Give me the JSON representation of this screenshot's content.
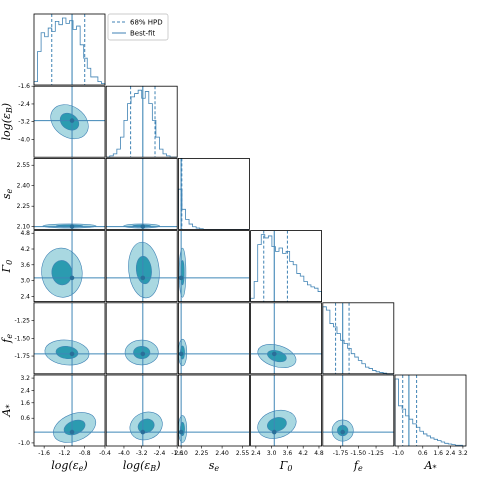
{
  "chart_data": {
    "type": "corner",
    "legend": {
      "placement": "top",
      "entries": [
        {
          "label": "68% HPD",
          "style": "dashed"
        },
        {
          "label": "Best-fit",
          "style": "solid"
        }
      ]
    },
    "colors": {
      "line": "#3f82b4",
      "fill_inner": "#2b9bb0",
      "fill_outer": "#a9d8e1",
      "best_fit": "#3f86b6"
    },
    "parameters": [
      {
        "name": "log_epsilon_e",
        "label": "log(εe)",
        "range": [
          -1.8,
          -0.4
        ],
        "ticks": [
          -1.6,
          -1.2,
          -0.8,
          -0.4
        ],
        "tick_labels": [
          "-1.6",
          "-1.2",
          "-0.8",
          "-0.4"
        ],
        "best_fit": -1.05,
        "hpd": [
          -1.45,
          -0.8
        ],
        "hist": [
          0.05,
          0.5,
          0.78,
          0.72,
          0.85,
          0.8,
          0.95,
          0.9,
          1.0,
          0.92,
          0.96,
          0.83,
          0.88,
          0.6,
          0.4,
          0.25,
          0.12,
          0.12,
          0.05,
          0.02
        ]
      },
      {
        "name": "log_epsilon_B",
        "label": "log(εB)",
        "range": [
          -4.8,
          -1.6
        ],
        "ticks": [
          -4.0,
          -3.2,
          -2.4,
          -1.6
        ],
        "tick_labels": [
          "-4.0",
          "-3.2",
          "-2.4",
          "-1.6"
        ],
        "best_fit": -3.15,
        "hpd": [
          -3.7,
          -2.6
        ],
        "hist": [
          0.0,
          0.02,
          0.05,
          0.12,
          0.3,
          0.55,
          0.8,
          0.9,
          0.95,
          1.0,
          0.88,
          0.98,
          0.8,
          0.55,
          0.3,
          0.12,
          0.05,
          0.02,
          0.0,
          0.0
        ]
      },
      {
        "name": "s_e",
        "label": "se",
        "range": [
          2.08,
          2.6
        ],
        "ticks": [
          2.1,
          2.25,
          2.4,
          2.55
        ],
        "tick_labels": [
          "2.10",
          "2.25",
          "2.40",
          "2.55"
        ],
        "best_fit": 2.1,
        "hpd": [
          2.1,
          2.105
        ],
        "hist": [
          0.6,
          0.3,
          0.15,
          0.08,
          0.04,
          0.02,
          0.01,
          0.0,
          0.0,
          0.0,
          0.0,
          0.0,
          0.0,
          0.0,
          0.0,
          0.0,
          0.0,
          0.0,
          0.0,
          0.0
        ]
      },
      {
        "name": "Gamma_0",
        "label": "Γ0",
        "range": [
          2.2,
          4.9
        ],
        "ticks": [
          2.4,
          3.0,
          3.6,
          4.2,
          4.8
        ],
        "tick_labels": [
          "2.4",
          "3.0",
          "3.6",
          "4.2",
          "4.8"
        ],
        "best_fit": 3.1,
        "hpd": [
          2.7,
          3.6
        ],
        "hist": [
          0.05,
          0.3,
          0.85,
          1.0,
          0.95,
          0.98,
          0.82,
          0.75,
          0.8,
          0.72,
          0.75,
          0.6,
          0.55,
          0.42,
          0.38,
          0.3,
          0.25,
          0.22,
          0.2,
          0.15
        ]
      },
      {
        "name": "f_e",
        "label": "fe",
        "range": [
          -2.0,
          -1.0
        ],
        "ticks": [
          -1.75,
          -1.5,
          -1.25
        ],
        "tick_labels": [
          "-1.75",
          "-1.50",
          "-1.25"
        ],
        "best_fit": -1.72,
        "hpd": [
          -1.82,
          -1.63
        ],
        "hist": [
          1.0,
          0.95,
          0.75,
          0.7,
          0.6,
          0.5,
          0.45,
          0.38,
          0.3,
          0.25,
          0.2,
          0.15,
          0.1,
          0.08,
          0.05,
          0.03,
          0.02,
          0.01,
          0.0,
          0.0
        ]
      },
      {
        "name": "A_star",
        "label": "A*",
        "range": [
          -1.2,
          3.4
        ],
        "ticks": [
          -1.0,
          0.6,
          1.6,
          2.4,
          3.2
        ],
        "tick_labels": [
          "-1.0",
          "0.6",
          "1.6",
          "2.4",
          "3.2"
        ],
        "best_fit": -0.3,
        "hpd": [
          -0.7,
          0.2
        ],
        "hist": [
          1.0,
          0.6,
          0.55,
          0.45,
          0.4,
          0.33,
          0.28,
          0.22,
          0.18,
          0.15,
          0.12,
          0.1,
          0.08,
          0.06,
          0.04,
          0.03,
          0.02,
          0.01,
          0.01,
          0.0
        ]
      }
    ],
    "contours": [
      {
        "x": 0,
        "y": 1,
        "center": [
          -1.1,
          -3.2
        ],
        "spread": [
          0.32,
          0.55
        ],
        "tilt": -0.7
      },
      {
        "x": 0,
        "y": 2,
        "center": [
          -1.1,
          2.105
        ],
        "spread": [
          0.42,
          0.012
        ],
        "tilt": 0.0
      },
      {
        "x": 1,
        "y": 2,
        "center": [
          -3.2,
          2.105
        ],
        "spread": [
          0.65,
          0.012
        ],
        "tilt": 0.0
      },
      {
        "x": 0,
        "y": 3,
        "center": [
          -1.25,
          3.3
        ],
        "spread": [
          0.32,
          0.75
        ],
        "tilt": 0.1
      },
      {
        "x": 1,
        "y": 3,
        "center": [
          -3.1,
          3.4
        ],
        "spread": [
          0.55,
          0.85
        ],
        "tilt": 0.1
      },
      {
        "x": 2,
        "y": 3,
        "center": [
          2.11,
          3.3
        ],
        "spread": [
          0.02,
          0.75
        ],
        "tilt": 0.0
      },
      {
        "x": 0,
        "y": 4,
        "center": [
          -1.15,
          -1.7
        ],
        "spread": [
          0.35,
          0.14
        ],
        "tilt": -0.1
      },
      {
        "x": 1,
        "y": 4,
        "center": [
          -3.2,
          -1.7
        ],
        "spread": [
          0.6,
          0.14
        ],
        "tilt": 0.0
      },
      {
        "x": 2,
        "y": 4,
        "center": [
          2.11,
          -1.7
        ],
        "spread": [
          0.025,
          0.15
        ],
        "tilt": 0.0
      },
      {
        "x": 3,
        "y": 4,
        "center": [
          3.2,
          -1.75
        ],
        "spread": [
          0.6,
          0.12
        ],
        "tilt": -0.3
      },
      {
        "x": 0,
        "y": 5,
        "center": [
          -1.0,
          0.0
        ],
        "spread": [
          0.35,
          0.7
        ],
        "tilt": 0.4
      },
      {
        "x": 1,
        "y": 5,
        "center": [
          -3.0,
          0.1
        ],
        "spread": [
          0.6,
          0.7
        ],
        "tilt": 0.4
      },
      {
        "x": 2,
        "y": 5,
        "center": [
          2.11,
          -0.1
        ],
        "spread": [
          0.025,
          0.7
        ],
        "tilt": 0.0
      },
      {
        "x": 3,
        "y": 5,
        "center": [
          3.2,
          0.2
        ],
        "spread": [
          0.6,
          0.7
        ],
        "tilt": 0.3
      },
      {
        "x": 4,
        "y": 5,
        "center": [
          -1.72,
          -0.2
        ],
        "spread": [
          0.12,
          0.55
        ],
        "tilt": 0.0
      }
    ]
  }
}
